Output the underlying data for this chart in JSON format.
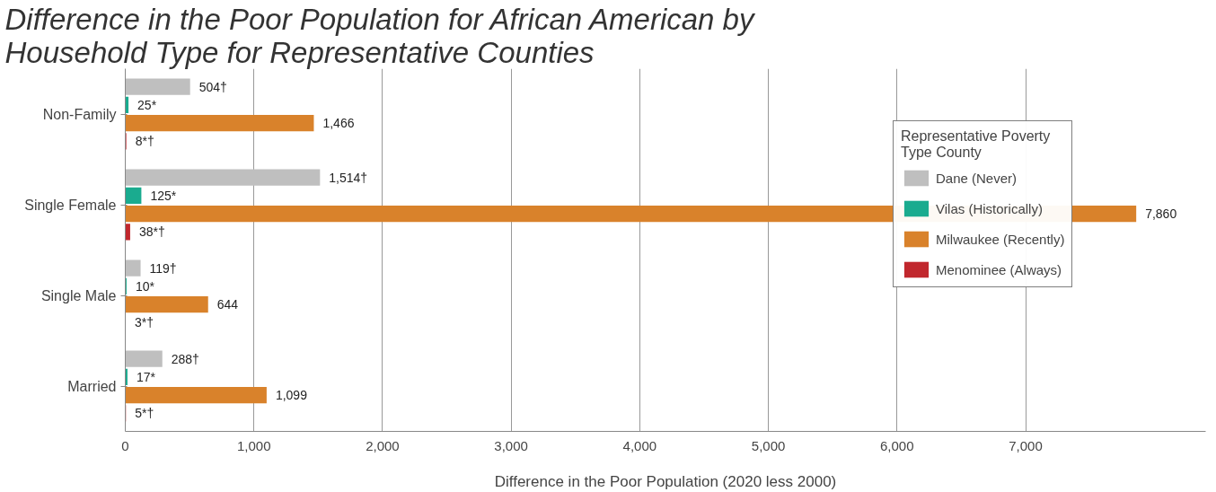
{
  "chart_data": {
    "type": "bar",
    "orientation": "horizontal",
    "title": "Difference in the Poor Population for African American by\nHousehold Type for Representative Counties",
    "xlabel": "Difference in the Poor Population (2020 less 2000)",
    "legend_title": "Representative Poverty\nType County",
    "categories": [
      "Non-Family",
      "Single Female",
      "Single Male",
      "Married"
    ],
    "series": [
      {
        "name": "Dane (Never)",
        "color": "#bfbfbf",
        "values": [
          504,
          1514,
          119,
          288
        ],
        "value_labels": [
          "504†",
          "1,514†",
          "119†",
          "288†"
        ]
      },
      {
        "name": "Vilas (Historically)",
        "color": "#1aab8f",
        "values": [
          25,
          125,
          10,
          17
        ],
        "value_labels": [
          "25*",
          "125*",
          "10*",
          "17*"
        ]
      },
      {
        "name": "Milwaukee (Recently)",
        "color": "#d9822b",
        "values": [
          1466,
          7860,
          644,
          1099
        ],
        "value_labels": [
          "1,466",
          "7,860",
          "644",
          "1,099"
        ]
      },
      {
        "name": "Menominee (Always)",
        "color": "#c1272d",
        "values": [
          8,
          38,
          3,
          5
        ],
        "value_labels": [
          "8*†",
          "38*†",
          "3*†",
          "5*†"
        ]
      }
    ],
    "xlim": [
      0,
      8400
    ],
    "xticks": [
      0,
      {
        "value": 1000,
        "label": "1,000"
      },
      {
        "value": 2000,
        "label": "2,000"
      },
      {
        "value": 3000,
        "label": "3,000"
      },
      {
        "value": 4000,
        "label": "4,000"
      },
      {
        "value": 5000,
        "label": "5,000"
      },
      {
        "value": 6000,
        "label": "6,000"
      },
      {
        "value": 7000,
        "label": "7,000"
      }
    ],
    "grid": "x",
    "legend": "top right"
  }
}
